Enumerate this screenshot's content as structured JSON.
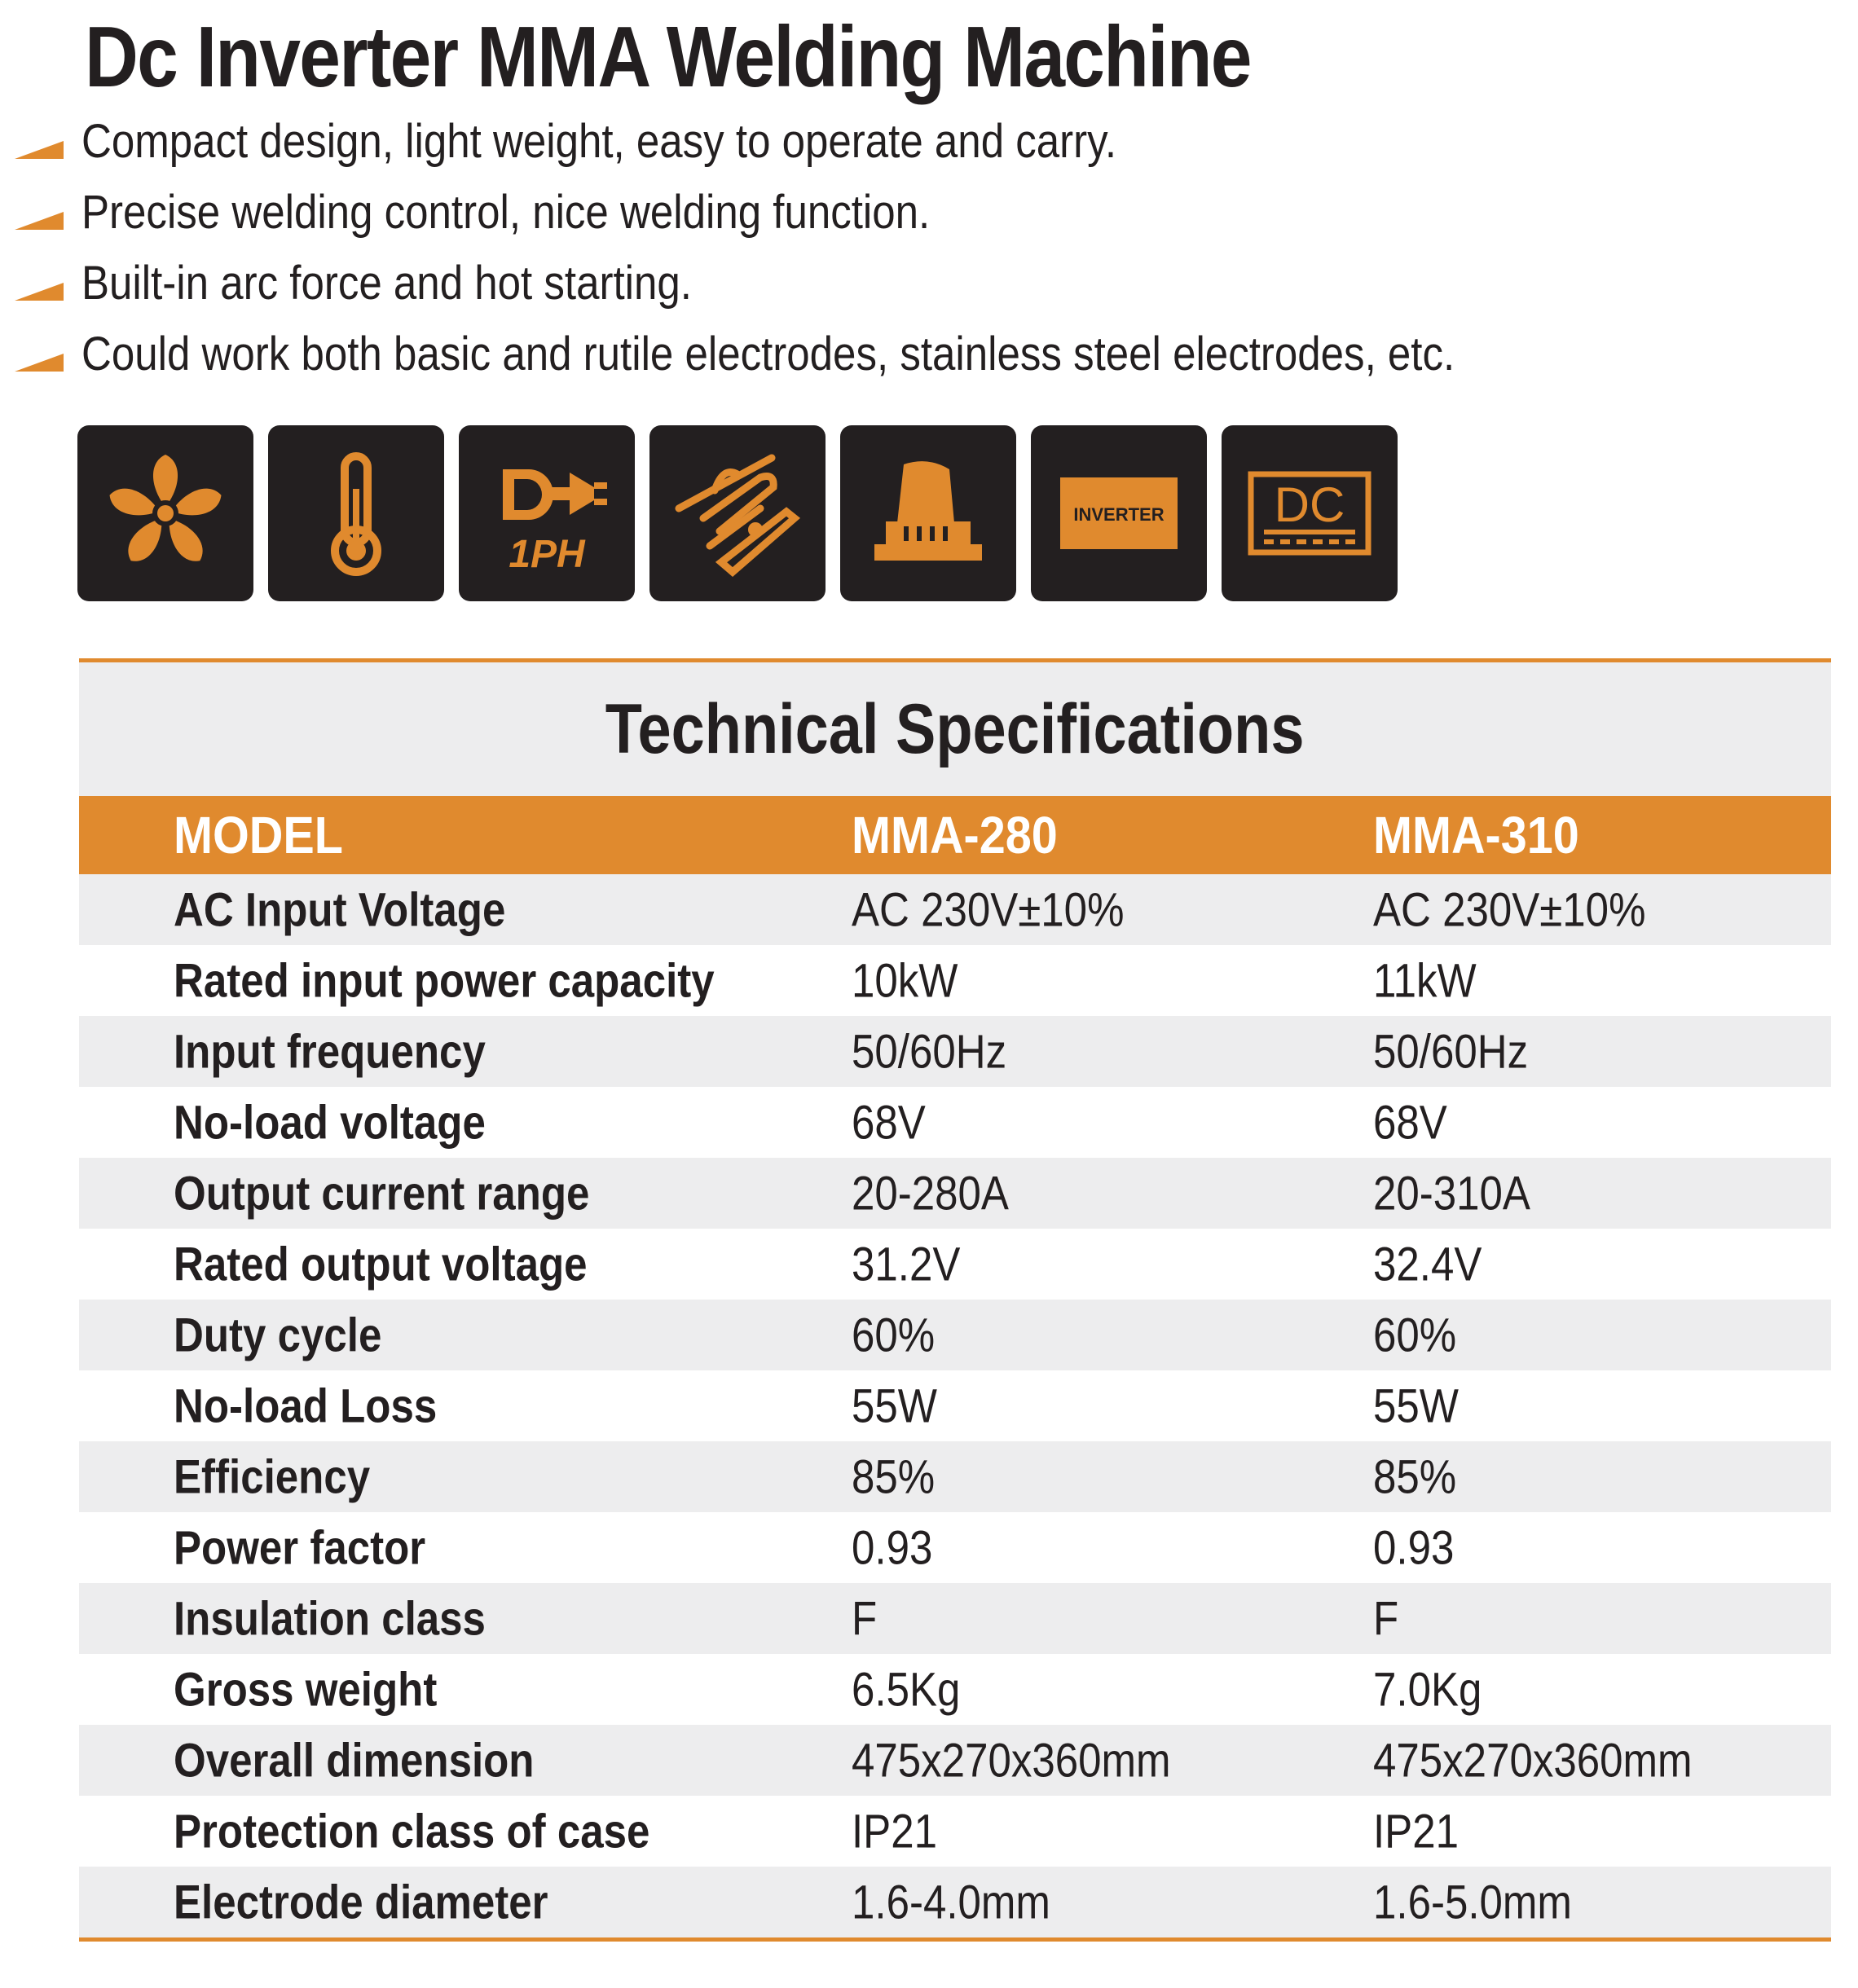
{
  "title": "Dc Inverter MMA Welding Machine",
  "features": [
    "Compact design, light weight, easy to operate and carry.",
    "Precise welding control, nice welding function.",
    "Built-in arc force and hot starting.",
    "Could work both basic and rutile electrodes, stainless steel electrodes, etc."
  ],
  "icons": [
    {
      "name": "fan-icon"
    },
    {
      "name": "thermometer-icon"
    },
    {
      "name": "single-phase-plug-icon",
      "label": "1PH"
    },
    {
      "name": "welding-tools-icon"
    },
    {
      "name": "hand-control-icon"
    },
    {
      "name": "inverter-icon",
      "label": "INVERTER"
    },
    {
      "name": "dc-icon",
      "label": "DC"
    }
  ],
  "colors": {
    "accent": "#e08a2e",
    "dark": "#231f20",
    "stripe": "#ededee"
  },
  "specifications": {
    "heading": "Technical Specifications",
    "header": {
      "label": "MODEL",
      "models": [
        "MMA-280",
        "MMA-310"
      ]
    },
    "rows": [
      {
        "label": "AC Input Voltage",
        "values": [
          "AC 230V±10%",
          "AC 230V±10%"
        ]
      },
      {
        "label": "Rated input power capacity",
        "values": [
          "10kW",
          "11kW"
        ]
      },
      {
        "label": "Input frequency",
        "values": [
          "50/60Hz",
          "50/60Hz"
        ]
      },
      {
        "label": "No-load voltage",
        "values": [
          "68V",
          "68V"
        ]
      },
      {
        "label": "Output current range",
        "values": [
          "20-280A",
          "20-310A"
        ]
      },
      {
        "label": "Rated output voltage",
        "values": [
          "31.2V",
          "32.4V"
        ]
      },
      {
        "label": "Duty cycle",
        "values": [
          "60%",
          "60%"
        ]
      },
      {
        "label": "No-load Loss",
        "values": [
          "55W",
          "55W"
        ]
      },
      {
        "label": "Efficiency",
        "values": [
          "85%",
          "85%"
        ]
      },
      {
        "label": "Power factor",
        "values": [
          "0.93",
          "0.93"
        ]
      },
      {
        "label": "Insulation class",
        "values": [
          "F",
          "F"
        ]
      },
      {
        "label": "Gross weight",
        "values": [
          "6.5Kg",
          "7.0Kg"
        ]
      },
      {
        "label": "Overall dimension",
        "values": [
          "475x270x360mm",
          "475x270x360mm"
        ]
      },
      {
        "label": "Protection class of case",
        "values": [
          "IP21",
          "IP21"
        ]
      },
      {
        "label": "Electrode diameter",
        "values": [
          "1.6-4.0mm",
          "1.6-5.0mm"
        ]
      }
    ]
  }
}
